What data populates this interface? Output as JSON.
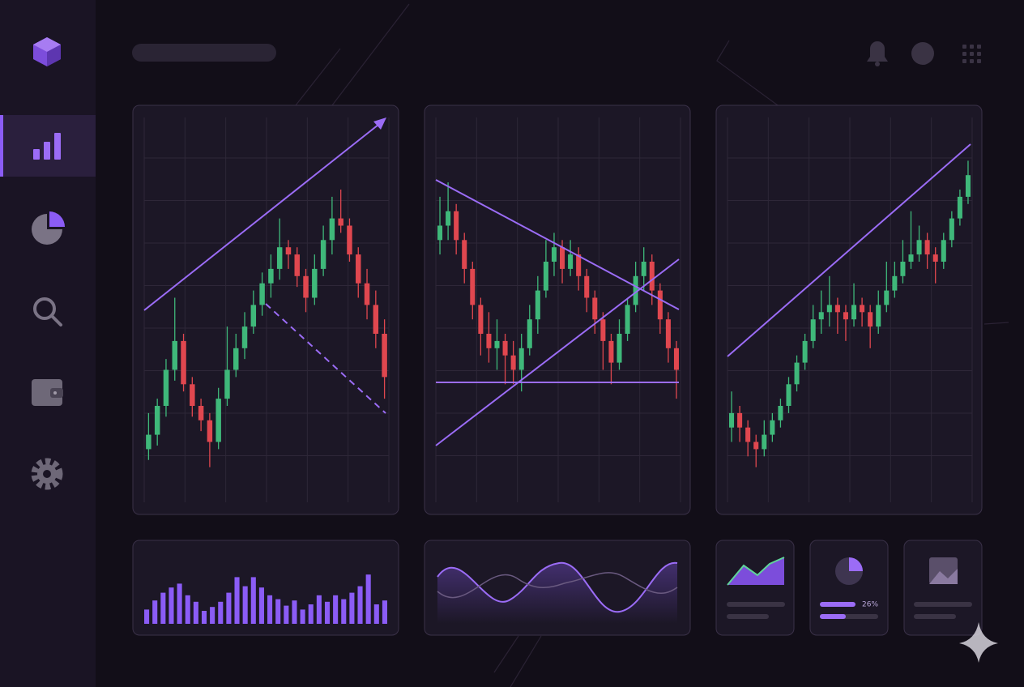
{
  "panels": [
    {
      "ylim": [
        0,
        100
      ],
      "candles": [
        [
          8,
          18,
          5,
          12
        ],
        [
          12,
          22,
          9,
          20
        ],
        [
          20,
          33,
          17,
          30
        ],
        [
          30,
          50,
          27,
          38
        ],
        [
          38,
          40,
          24,
          26
        ],
        [
          26,
          28,
          17,
          20
        ],
        [
          20,
          22,
          13,
          16
        ],
        [
          16,
          18,
          3,
          10
        ],
        [
          10,
          25,
          8,
          22
        ],
        [
          22,
          42,
          20,
          30
        ],
        [
          30,
          40,
          28,
          36
        ],
        [
          36,
          46,
          33,
          42
        ],
        [
          42,
          52,
          40,
          48
        ],
        [
          48,
          57,
          45,
          54
        ],
        [
          54,
          62,
          50,
          58
        ],
        [
          58,
          72,
          55,
          64
        ],
        [
          64,
          66,
          58,
          62
        ],
        [
          62,
          64,
          53,
          56
        ],
        [
          56,
          58,
          46,
          50
        ],
        [
          50,
          62,
          48,
          58
        ],
        [
          58,
          70,
          56,
          66
        ],
        [
          66,
          78,
          62,
          72
        ],
        [
          72,
          80,
          68,
          70
        ],
        [
          70,
          72,
          60,
          62
        ],
        [
          62,
          64,
          50,
          54
        ],
        [
          54,
          58,
          44,
          48
        ],
        [
          48,
          52,
          36,
          40
        ],
        [
          40,
          44,
          22,
          28
        ]
      ]
    },
    {
      "ylim": [
        0,
        100
      ],
      "candles": [
        [
          66,
          78,
          62,
          70
        ],
        [
          70,
          82,
          66,
          74
        ],
        [
          74,
          76,
          62,
          66
        ],
        [
          66,
          68,
          54,
          58
        ],
        [
          58,
          60,
          44,
          48
        ],
        [
          48,
          50,
          34,
          40
        ],
        [
          40,
          46,
          32,
          36
        ],
        [
          36,
          44,
          30,
          38
        ],
        [
          38,
          40,
          26,
          34
        ],
        [
          34,
          38,
          26,
          30
        ],
        [
          30,
          40,
          24,
          36
        ],
        [
          36,
          48,
          34,
          44
        ],
        [
          44,
          56,
          40,
          52
        ],
        [
          52,
          66,
          50,
          60
        ],
        [
          60,
          68,
          56,
          64
        ],
        [
          64,
          66,
          54,
          58
        ],
        [
          58,
          66,
          56,
          62
        ],
        [
          62,
          64,
          52,
          56
        ],
        [
          56,
          58,
          46,
          50
        ],
        [
          50,
          52,
          40,
          44
        ],
        [
          44,
          46,
          30,
          38
        ],
        [
          38,
          40,
          26,
          32
        ],
        [
          32,
          44,
          30,
          40
        ],
        [
          40,
          50,
          38,
          48
        ],
        [
          48,
          60,
          46,
          56
        ],
        [
          56,
          64,
          52,
          60
        ],
        [
          60,
          62,
          48,
          52
        ],
        [
          52,
          54,
          40,
          44
        ],
        [
          44,
          46,
          32,
          36
        ],
        [
          36,
          38,
          22,
          30
        ]
      ]
    },
    {
      "ylim": [
        0,
        100
      ],
      "candles": [
        [
          14,
          24,
          10,
          18
        ],
        [
          18,
          20,
          10,
          14
        ],
        [
          14,
          16,
          6,
          10
        ],
        [
          10,
          12,
          3,
          8
        ],
        [
          8,
          16,
          6,
          12
        ],
        [
          12,
          18,
          10,
          16
        ],
        [
          16,
          22,
          14,
          20
        ],
        [
          20,
          28,
          18,
          26
        ],
        [
          26,
          34,
          24,
          32
        ],
        [
          32,
          40,
          30,
          38
        ],
        [
          38,
          48,
          36,
          44
        ],
        [
          44,
          52,
          40,
          46
        ],
        [
          46,
          56,
          42,
          48
        ],
        [
          48,
          50,
          40,
          46
        ],
        [
          46,
          48,
          38,
          44
        ],
        [
          44,
          54,
          42,
          48
        ],
        [
          48,
          50,
          42,
          46
        ],
        [
          46,
          48,
          36,
          42
        ],
        [
          42,
          52,
          40,
          48
        ],
        [
          48,
          60,
          46,
          52
        ],
        [
          52,
          60,
          50,
          56
        ],
        [
          56,
          66,
          54,
          60
        ],
        [
          60,
          74,
          58,
          62
        ],
        [
          62,
          70,
          60,
          66
        ],
        [
          66,
          68,
          58,
          62
        ],
        [
          62,
          64,
          54,
          60
        ],
        [
          60,
          68,
          58,
          66
        ],
        [
          66,
          74,
          64,
          72
        ],
        [
          72,
          80,
          70,
          78
        ],
        [
          78,
          88,
          76,
          84
        ]
      ]
    }
  ],
  "up_color": "#3fb87a",
  "down_color": "#e0474f",
  "volume": {
    "ylim": [
      0,
      100
    ],
    "color": "#8b5cf6",
    "values": [
      22,
      36,
      48,
      56,
      62,
      44,
      34,
      20,
      26,
      34,
      48,
      72,
      58,
      72,
      56,
      44,
      38,
      28,
      36,
      22,
      30,
      44,
      34,
      44,
      38,
      48,
      58,
      76,
      30,
      36
    ]
  },
  "stat": {
    "label": "26%"
  }
}
